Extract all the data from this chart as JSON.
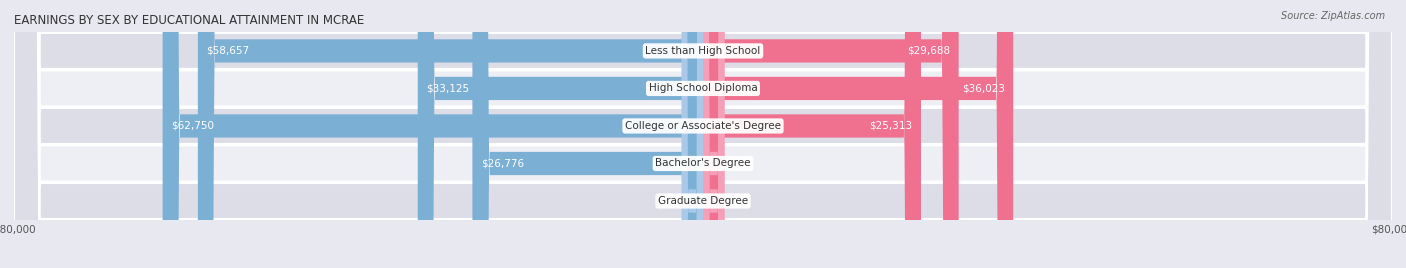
{
  "title": "EARNINGS BY SEX BY EDUCATIONAL ATTAINMENT IN MCRAE",
  "source": "Source: ZipAtlas.com",
  "categories": [
    "Less than High School",
    "High School Diploma",
    "College or Associate's Degree",
    "Bachelor's Degree",
    "Graduate Degree"
  ],
  "male_values": [
    58657,
    33125,
    62750,
    26776,
    0
  ],
  "female_values": [
    29688,
    36023,
    25313,
    0,
    0
  ],
  "male_color": "#7bafd4",
  "female_color": "#f07090",
  "male_color_light": "#aac8e8",
  "female_color_light": "#f5a0b8",
  "bar_height": 0.62,
  "max_value": 80000,
  "bg_color": "#e8e8f0",
  "row_bg_even": "#dddde8",
  "row_bg_odd": "#eeeef5",
  "title_fontsize": 8.5,
  "label_fontsize": 7.5,
  "tick_fontsize": 7.5,
  "source_fontsize": 7
}
